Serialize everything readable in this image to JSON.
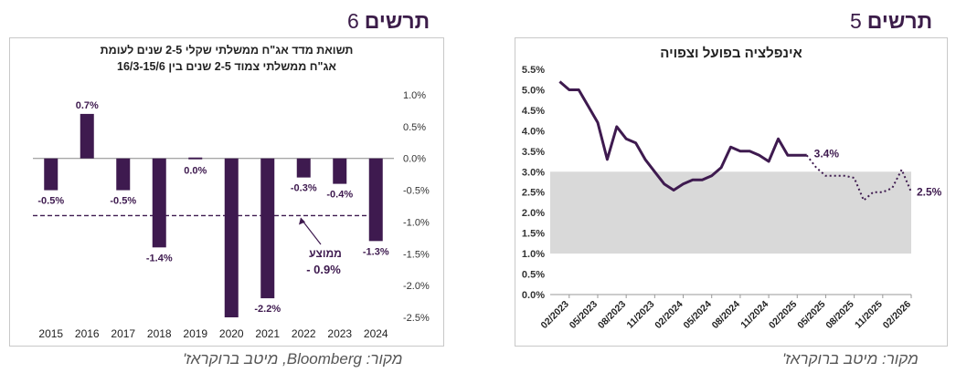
{
  "left": {
    "heading_word": "תרשים",
    "heading_num": "6",
    "source": "מקור: Bloomberg, מיטב ברוקראז'",
    "avg_label_line1": "ממוצע",
    "avg_label_line2": "- 0.9%"
  },
  "right": {
    "heading_word": "תרשים",
    "heading_num": "5",
    "source": "מקור: מיטב ברוקראז'",
    "actual_end_label": "3.4%",
    "forecast_end_label": "2.5%"
  },
  "colors": {
    "bar": "#3e1a4f",
    "line": "#3e1a4f",
    "target_band": "#d9d9d9",
    "axis": "#333333"
  },
  "chart_data": [
    {
      "type": "bar",
      "title": "תשואת מדד אג\"ח ממשלתי שקלי 2-5 שנים לעומת אג\"ח ממשלתי צמוד 2-5 שנים בין 16/3-15/6",
      "title_line1": "תשואת מדד אג\"ח ממשלתי שקלי 2-5 שנים לעומת",
      "title_line2": "אג\"ח ממשלתי צמוד 2-5 שנים בין 16/3-15/6",
      "categories": [
        "2015",
        "2016",
        "2017",
        "2018",
        "2019",
        "2020",
        "2021",
        "2022",
        "2023",
        "2024"
      ],
      "values": [
        -0.5,
        0.7,
        -0.5,
        -1.4,
        0.0,
        -2.5,
        -2.2,
        -0.3,
        -0.4,
        -1.3
      ],
      "data_labels": [
        "-0.5%",
        "0.7%",
        "-0.5%",
        "-1.4%",
        "0.0%",
        "",
        "-2.2%",
        "-0.3%",
        "-0.4%",
        "-1.3%"
      ],
      "average": -0.9,
      "ylim": [
        -2.5,
        1.0
      ],
      "y_ticks": [
        1.0,
        0.5,
        0.0,
        -0.5,
        -1.0,
        -1.5,
        -2.0,
        -2.5
      ],
      "y_tick_labels": [
        "1.0%",
        "0.5%",
        "0.0%",
        "-0.5%",
        "-1.0%",
        "-1.5%",
        "-2.0%",
        "-2.5%"
      ],
      "y_axis_side": "right",
      "grid": false,
      "legend": "none"
    },
    {
      "type": "line",
      "title": "אינפלציה בפועל וצפויה",
      "x_tick_labels": [
        "02/2023",
        "05/2023",
        "08/2023",
        "11/2023",
        "02/2024",
        "05/2024",
        "08/2024",
        "11/2024",
        "02/2025",
        "05/2025",
        "08/2025",
        "11/2025",
        "02/2026"
      ],
      "series": [
        {
          "style": "solid",
          "x": [
            "01/2023",
            "02/2023",
            "03/2023",
            "04/2023",
            "05/2023",
            "06/2023",
            "07/2023",
            "08/2023",
            "09/2023",
            "10/2023",
            "11/2023",
            "12/2023",
            "01/2024",
            "02/2024",
            "03/2024",
            "04/2024",
            "05/2024",
            "06/2024",
            "07/2024",
            "08/2024",
            "09/2024",
            "10/2024",
            "11/2024",
            "12/2024",
            "01/2025",
            "02/2025",
            "03/2025"
          ],
          "values": [
            5.2,
            5.0,
            5.0,
            4.6,
            4.2,
            3.3,
            4.1,
            3.8,
            3.7,
            3.3,
            3.0,
            2.7,
            2.55,
            2.7,
            2.8,
            2.8,
            2.9,
            3.1,
            3.6,
            3.5,
            3.5,
            3.4,
            3.25,
            3.8,
            3.4,
            3.4,
            3.4
          ]
        },
        {
          "style": "dotted",
          "x": [
            "03/2025",
            "04/2025",
            "05/2025",
            "06/2025",
            "07/2025",
            "08/2025",
            "09/2025",
            "10/2025",
            "11/2025",
            "12/2025",
            "01/2026",
            "02/2026"
          ],
          "values": [
            3.4,
            3.1,
            2.9,
            2.9,
            2.9,
            2.85,
            2.3,
            2.5,
            2.5,
            2.6,
            3.05,
            2.5
          ]
        }
      ],
      "target_band": [
        1.0,
        3.0
      ],
      "ylim": [
        0.0,
        5.5
      ],
      "y_ticks": [
        0.0,
        0.5,
        1.0,
        1.5,
        2.0,
        2.5,
        3.0,
        3.5,
        4.0,
        4.5,
        5.0,
        5.5
      ],
      "y_tick_labels": [
        "0.0%",
        "0.5%",
        "1.0%",
        "1.5%",
        "2.0%",
        "2.5%",
        "3.0%",
        "3.5%",
        "4.0%",
        "4.5%",
        "5.0%",
        "5.5%"
      ],
      "grid": false,
      "legend": "none"
    }
  ]
}
